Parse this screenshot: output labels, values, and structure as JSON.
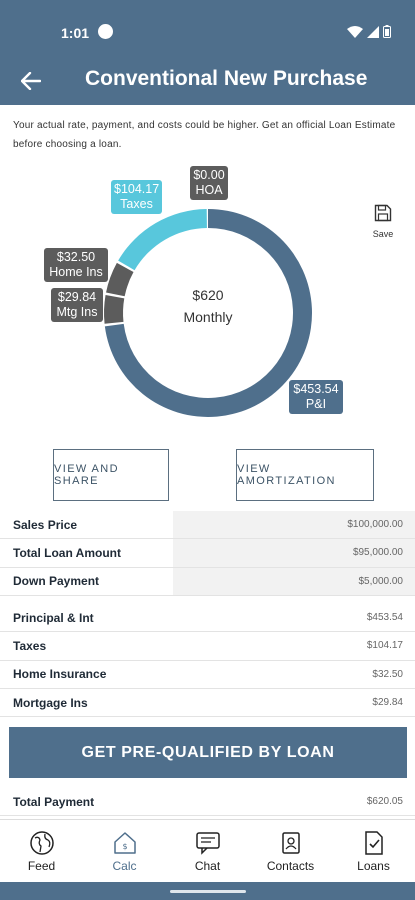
{
  "status_bar": {
    "time": "1:01"
  },
  "header": {
    "title": "Conventional New Purchase"
  },
  "disclaimer": "Your actual rate, payment, and costs could be higher. Get an official Loan Estimate before choosing a loan.",
  "chart_data": {
    "type": "pie",
    "categories": [
      "P&I",
      "Mtg Ins",
      "Home Ins",
      "Taxes",
      "HOA"
    ],
    "values": [
      453.54,
      29.84,
      32.5,
      104.17,
      0.0
    ],
    "labels": [
      "$453.54",
      "$29.84",
      "$32.50",
      "$104.17",
      "$0.00"
    ],
    "colors": [
      "#4f6f8c",
      "#5c5c5c",
      "#5c5c5c",
      "#58c7dc",
      "#5c5c5c"
    ],
    "center_value": "$620",
    "center_label": "Monthly"
  },
  "save": {
    "label": "Save"
  },
  "buttons": {
    "view_share": "VIEW AND SHARE",
    "view_amortization": "VIEW AMORTIZATION"
  },
  "loan_summary": [
    {
      "label": "Sales Price",
      "value": "$100,000.00"
    },
    {
      "label": "Total Loan Amount",
      "value": "$95,000.00"
    },
    {
      "label": "Down Payment",
      "value": "$5,000.00"
    }
  ],
  "payment_breakdown": [
    {
      "label": "Principal & Int",
      "value": "$453.54"
    },
    {
      "label": "Taxes",
      "value": "$104.17"
    },
    {
      "label": "Home Insurance",
      "value": "$32.50"
    },
    {
      "label": "Mortgage Ins",
      "value": "$29.84"
    }
  ],
  "cta": {
    "label": "GET PRE-QUALIFIED BY LOAN"
  },
  "total": {
    "label": "Total Payment",
    "value": "$620.05"
  },
  "bottom_nav": [
    {
      "label": "Feed",
      "icon": "feed-icon"
    },
    {
      "label": "Calc",
      "icon": "calc-icon",
      "active": true
    },
    {
      "label": "Chat",
      "icon": "chat-icon"
    },
    {
      "label": "Contacts",
      "icon": "contacts-icon"
    },
    {
      "label": "Loans",
      "icon": "loans-icon"
    }
  ],
  "colors": {
    "brand": "#4f6f8c",
    "teal": "#58c7dc",
    "dark": "#5c5c5c"
  }
}
